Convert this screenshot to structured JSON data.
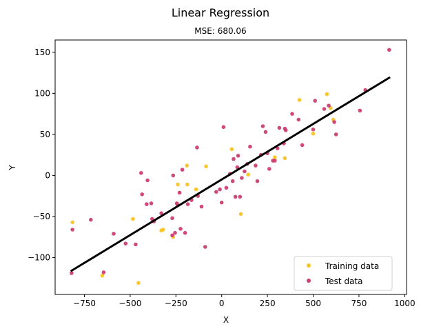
{
  "chart_data": {
    "type": "scatter",
    "title": "Linear Regression",
    "subtitle": "MSE: 680.06",
    "xlabel": "X",
    "ylabel": "Y",
    "xlim": [
      -910,
      1010
    ],
    "ylim": [
      -145,
      165
    ],
    "xticks": [
      -750,
      -500,
      -250,
      0,
      250,
      500,
      750,
      1000
    ],
    "xtick_labels": [
      "−750",
      "−500",
      "−250",
      "0",
      "250",
      "500",
      "750",
      "1000"
    ],
    "yticks": [
      -100,
      -50,
      0,
      50,
      100,
      150
    ],
    "ytick_labels": [
      "−100",
      "−50",
      "0",
      "50",
      "100",
      "150"
    ],
    "grid": false,
    "legend_position": "lower-right",
    "series": [
      {
        "name": "Training data",
        "kind": "scatter",
        "color": "#f7c325",
        "points": [
          [
            -815,
            -57
          ],
          [
            -652,
            -122
          ],
          [
            -485,
            -53
          ],
          [
            -455,
            -131
          ],
          [
            -330,
            -67
          ],
          [
            -320,
            -66
          ],
          [
            -265,
            -75
          ],
          [
            -240,
            -11
          ],
          [
            -190,
            12
          ],
          [
            -188,
            -11
          ],
          [
            -140,
            -17
          ],
          [
            -85,
            11
          ],
          [
            55,
            32
          ],
          [
            105,
            -47
          ],
          [
            145,
            1
          ],
          [
            290,
            22
          ],
          [
            345,
            21
          ],
          [
            425,
            92
          ],
          [
            500,
            51
          ],
          [
            575,
            99
          ],
          [
            595,
            82
          ],
          [
            610,
            68
          ]
        ]
      },
      {
        "name": "Test data",
        "kind": "scatter",
        "color": "#cc3f73",
        "points": [
          [
            -820,
            -119
          ],
          [
            -815,
            -66
          ],
          [
            -715,
            -54
          ],
          [
            -590,
            -71
          ],
          [
            -645,
            -118
          ],
          [
            -525,
            -83
          ],
          [
            -470,
            -84
          ],
          [
            -440,
            3
          ],
          [
            -435,
            -23
          ],
          [
            -410,
            -35
          ],
          [
            -405,
            -6
          ],
          [
            -385,
            -34
          ],
          [
            -380,
            -53
          ],
          [
            -370,
            -56
          ],
          [
            -330,
            -46
          ],
          [
            -270,
            -52
          ],
          [
            -270,
            -73
          ],
          [
            -265,
            0
          ],
          [
            -255,
            -70
          ],
          [
            -245,
            -34
          ],
          [
            -240,
            -36
          ],
          [
            -230,
            -21
          ],
          [
            -225,
            -65
          ],
          [
            -215,
            7
          ],
          [
            -200,
            -70
          ],
          [
            -185,
            -35
          ],
          [
            -165,
            -30
          ],
          [
            -135,
            34
          ],
          [
            -130,
            -25
          ],
          [
            -110,
            -38
          ],
          [
            -90,
            -87
          ],
          [
            -30,
            -20
          ],
          [
            -10,
            -17
          ],
          [
            0,
            -33
          ],
          [
            10,
            59
          ],
          [
            25,
            -15
          ],
          [
            45,
            2
          ],
          [
            60,
            -7
          ],
          [
            65,
            20
          ],
          [
            75,
            -26
          ],
          [
            85,
            10
          ],
          [
            90,
            24
          ],
          [
            100,
            -26
          ],
          [
            110,
            -3
          ],
          [
            125,
            5
          ],
          [
            140,
            14
          ],
          [
            155,
            35
          ],
          [
            185,
            12
          ],
          [
            195,
            -7
          ],
          [
            215,
            25
          ],
          [
            225,
            60
          ],
          [
            240,
            53
          ],
          [
            250,
            27
          ],
          [
            260,
            8
          ],
          [
            280,
            18
          ],
          [
            290,
            18
          ],
          [
            305,
            33
          ],
          [
            315,
            58
          ],
          [
            340,
            39
          ],
          [
            345,
            57
          ],
          [
            350,
            55
          ],
          [
            385,
            75
          ],
          [
            420,
            68
          ],
          [
            440,
            37
          ],
          [
            500,
            56
          ],
          [
            510,
            91
          ],
          [
            560,
            81
          ],
          [
            585,
            85
          ],
          [
            615,
            65
          ],
          [
            625,
            50
          ],
          [
            755,
            79
          ],
          [
            785,
            104
          ],
          [
            915,
            153
          ]
        ]
      },
      {
        "name": "",
        "kind": "line",
        "color": "#000000",
        "points": [
          [
            -820,
            -116
          ],
          [
            915,
            119
          ]
        ]
      }
    ]
  }
}
